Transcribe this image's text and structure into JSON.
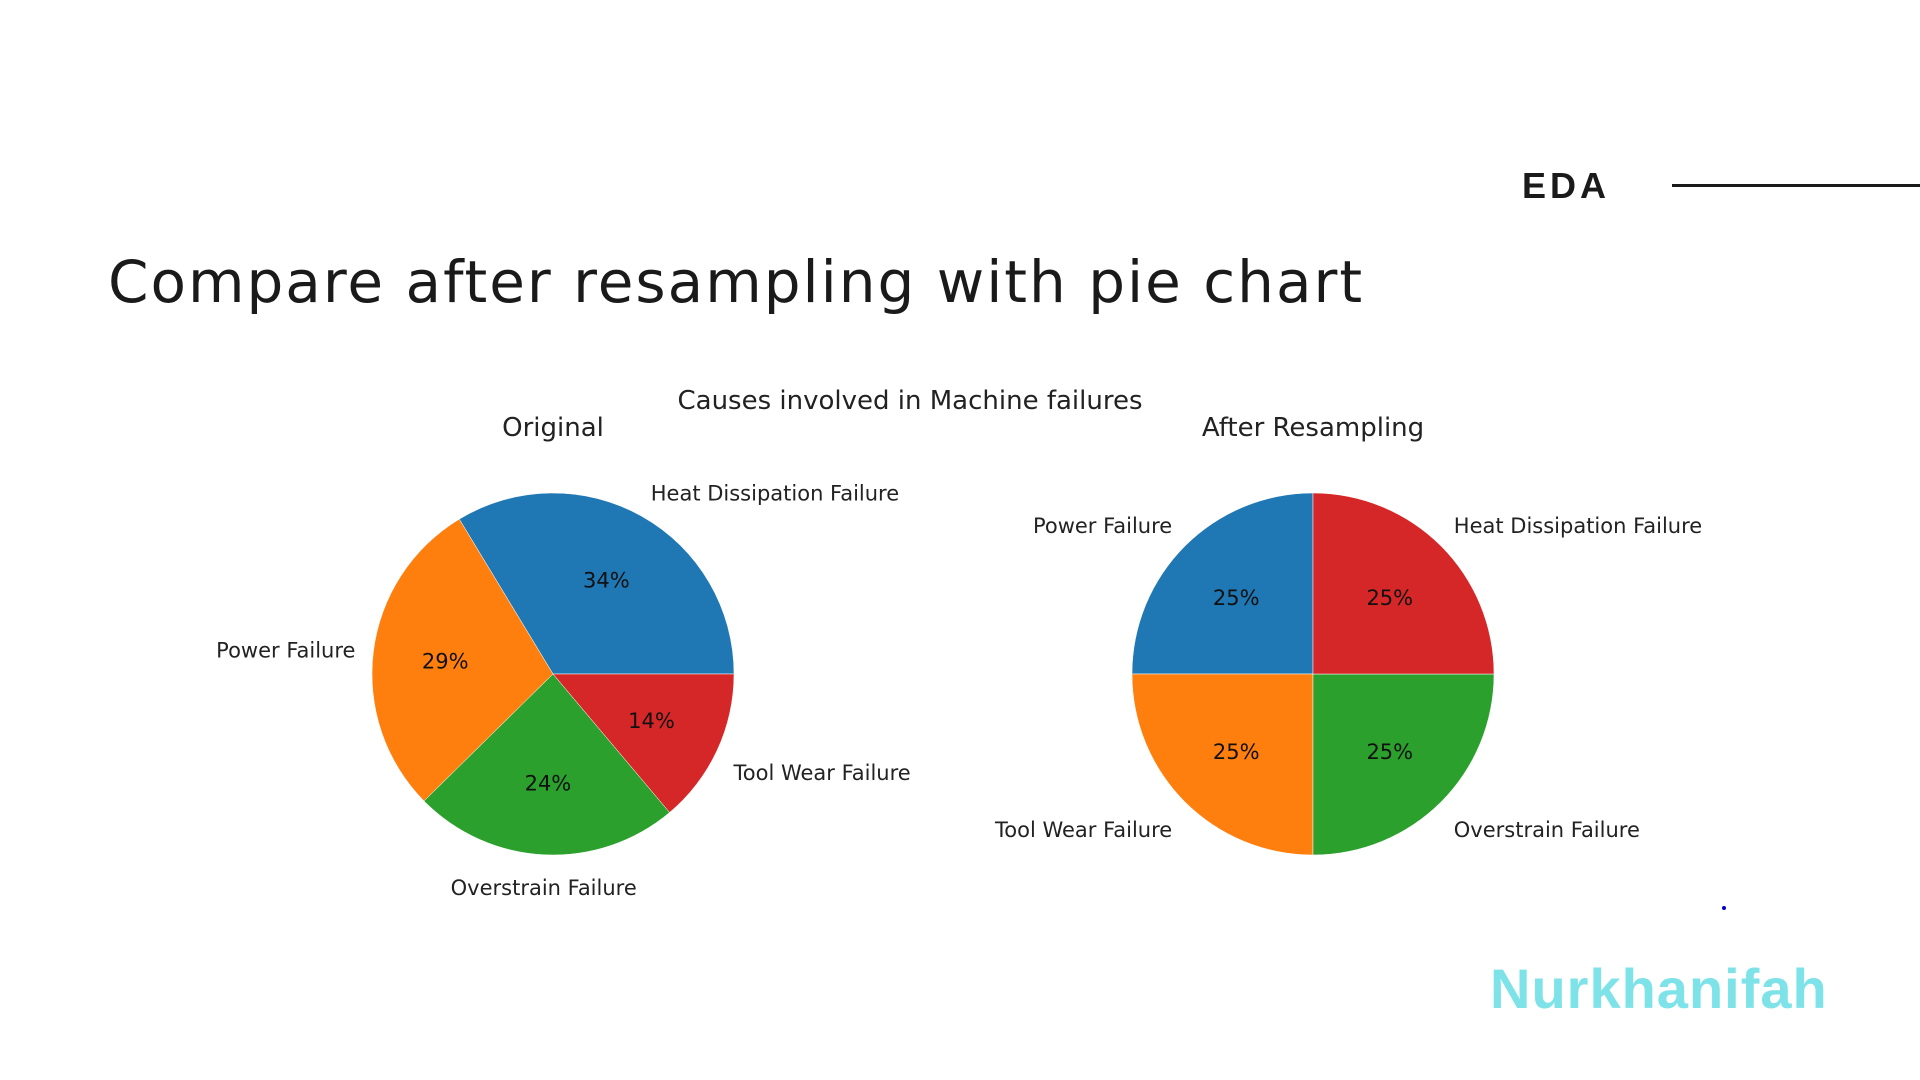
{
  "header": {
    "section": "EDA",
    "title": "Compare after resampling with pie chart"
  },
  "figure": {
    "suptitle": "Causes involved in Machine failures"
  },
  "brand": "Nurkhanifah",
  "chart_data": [
    {
      "type": "pie",
      "title": "Original",
      "categories": [
        "Heat Dissipation Failure",
        "Power Failure",
        "Overstrain Failure",
        "Tool Wear Failure"
      ],
      "values": [
        34,
        29,
        24,
        14
      ],
      "labels_pct": [
        "34%",
        "29%",
        "24%",
        "14%"
      ],
      "colors": [
        "#1f77b4",
        "#ff7f0e",
        "#2ca02c",
        "#d62728"
      ],
      "startangle": 0,
      "direction": "counterclockwise"
    },
    {
      "type": "pie",
      "title": "After Resampling",
      "categories": [
        "Power Failure",
        "Tool Wear Failure",
        "Overstrain Failure",
        "Heat Dissipation Failure"
      ],
      "values": [
        25,
        25,
        25,
        25
      ],
      "labels_pct": [
        "25%",
        "25%",
        "25%",
        "25%"
      ],
      "colors": [
        "#1f77b4",
        "#ff7f0e",
        "#2ca02c",
        "#d62728"
      ],
      "startangle": 90,
      "direction": "counterclockwise"
    }
  ]
}
